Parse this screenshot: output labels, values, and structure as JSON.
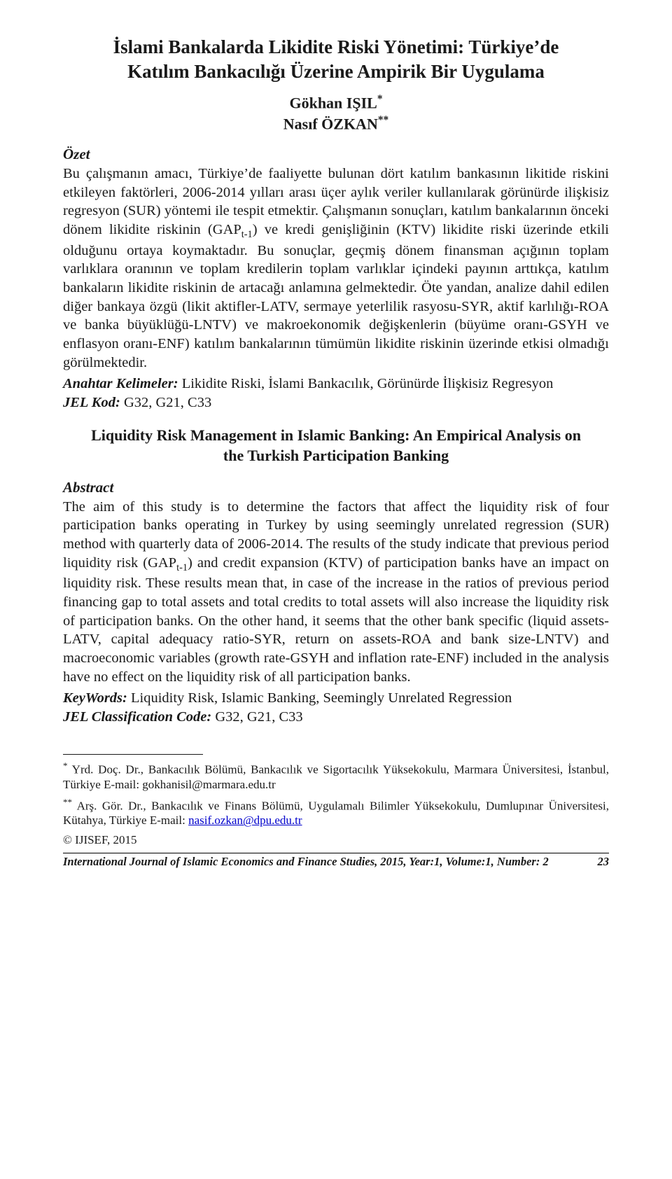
{
  "title_tr_line1": "İslami Bankalarda Likidite Riski Yönetimi: Türkiye’de",
  "title_tr_line2": "Katılım Bankacılığı Üzerine Ampirik Bir Uygulama",
  "author1": "Gökhan IŞIL",
  "author1_mark": "*",
  "author2": "Nasıf ÖZKAN",
  "author2_mark": "**",
  "ozet_label": "Özet",
  "ozet_text_pre": "Bu çalışmanın amacı, Türkiye’de faaliyette bulunan dört katılım bankasının likitide riskini etkileyen faktörleri, 2006-2014 yılları arası üçer aylık veriler kullanılarak görünürde ilişkisiz regresyon (SUR) yöntemi ile tespit etmektir. Çalışmanın sonuçları, katılım bankalarının önceki dönem likidite riskinin (GAP",
  "ozet_sub1": "t-1",
  "ozet_text_post": ") ve kredi genişliğinin (KTV) likidite riski üzerinde etkili olduğunu ortaya koymaktadır. Bu sonuçlar, geçmiş dönem finansman açığının toplam varlıklara oranının ve toplam kredilerin toplam varlıklar içindeki payının arttıkça, katılım bankaların likidite riskinin de artacağı anlamına gelmektedir. Öte yandan, analize dahil edilen diğer bankaya özgü (likit aktifler-LATV, sermaye yeterlilik rasyosu-SYR, aktif karlılığı-ROA ve banka büyüklüğü-LNTV) ve makroekonomik değişkenlerin (büyüme oranı-GSYH ve enflasyon oranı-ENF) katılım bankalarının tümümün likidite riskinin üzerinde etkisi olmadığı görülmektedir.",
  "anahtar_label": "Anahtar Kelimeler: ",
  "anahtar_text": "Likidite Riski, İslami Bankacılık, Görünürde İlişkisiz Regresyon",
  "jel_tr_label": "JEL Kod: ",
  "jel_tr_text": "G32, G21, C33",
  "title_en_line1": "Liquidity Risk Management in Islamic Banking: An Empirical Analysis on",
  "title_en_line2": "the Turkish Participation Banking",
  "abstract_label": "Abstract",
  "abstract_text_pre": "The aim of this study is to determine the factors that affect the liquidity risk of four participation banks operating in Turkey by using seemingly unrelated regression (SUR) method with quarterly data of 2006-2014. The results of the study indicate that previous period liquidity risk (GAP",
  "abstract_sub1": "t-1",
  "abstract_text_post": ") and credit expansion (KTV) of participation banks have an impact on liquidity risk. These results mean that, in case of the increase in the ratios of previous period financing gap to total assets and total credits to total assets will also increase the liquidity risk of participation banks. On the other hand, it seems that the other bank specific (liquid assets-LATV, capital adequacy ratio-SYR, return on assets-ROA and bank size-LNTV) and macroeconomic variables (growth rate-GSYH and inflation rate-ENF) included in the analysis have no effect on the liquidity risk of all participation banks.",
  "keywords_label": "KeyWords:  ",
  "keywords_text": "Liquidity Risk, Islamic Banking, Seemingly Unrelated Regression",
  "jel_en_label": "JEL Classification Code:  ",
  "jel_en_text": "G32, G21, C33",
  "fn1_mark": "*",
  "fn1_text": " Yrd. Doç. Dr., Bankacılık Bölümü, Bankacılık ve Sigortacılık Yüksekokulu, Marmara Üniversitesi, İstanbul, Türkiye E-mail: gokhanisil@marmara.edu.tr",
  "fn2_mark": "**",
  "fn2_text_a": " Arş. Gör. Dr., Bankacılık ve Finans Bölümü, Uygulamalı Bilimler Yüksekokulu, Dumlupınar Üniversitesi, Kütahya, Türkiye E-mail: ",
  "fn2_link": "nasif.ozkan@dpu.edu.tr",
  "copyright": "© IJISEF, 2015",
  "footer_journal": "International Journal of Islamic Economics and Finance Studies, 2015, Year:1, Volume:1, Number: 2",
  "footer_page": "23"
}
